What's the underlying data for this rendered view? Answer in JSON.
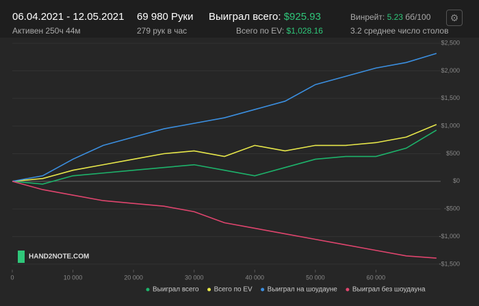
{
  "header": {
    "date_range": "06.04.2021 - 12.05.2021",
    "active": "Активен 250ч 44м",
    "hands": "69 980 Руки",
    "hands_per_hour": "279 рук в час",
    "won_label": "Выиграл всего:",
    "won_value": "$925.93",
    "ev_label": "Всего по EV:",
    "ev_value": "$1,028.16",
    "winrate_label": "Винрейт:",
    "winrate_value": "5.23",
    "winrate_unit": "бб/100",
    "tables": "3.2 среднее число столов"
  },
  "logo": "HAND2NOTE.COM",
  "chart_data": {
    "type": "line",
    "x": [
      0,
      5000,
      10000,
      15000,
      20000,
      25000,
      30000,
      35000,
      40000,
      45000,
      50000,
      55000,
      60000,
      65000,
      69980
    ],
    "series": [
      {
        "name": "Выиграл всего",
        "color": "#1db36b",
        "values": [
          0,
          -50,
          100,
          150,
          200,
          250,
          300,
          200,
          100,
          250,
          400,
          450,
          450,
          600,
          926
        ]
      },
      {
        "name": "Всего по EV",
        "color": "#e8e84a",
        "values": [
          0,
          50,
          200,
          300,
          400,
          500,
          550,
          450,
          650,
          550,
          650,
          650,
          700,
          800,
          1028
        ]
      },
      {
        "name": "Выиграл на шоудауне",
        "color": "#3b8fe0",
        "values": [
          0,
          100,
          400,
          650,
          800,
          950,
          1050,
          1150,
          1300,
          1450,
          1750,
          1900,
          2050,
          2150,
          2315
        ]
      },
      {
        "name": "Выиграл без шоудауна",
        "color": "#e0456e",
        "values": [
          0,
          -150,
          -250,
          -350,
          -400,
          -450,
          -550,
          -750,
          -850,
          -950,
          -1050,
          -1150,
          -1250,
          -1350,
          -1390
        ]
      }
    ],
    "xlim": [
      0,
      70000
    ],
    "ylim": [
      -1600,
      2600
    ],
    "xticks": [
      0,
      {
        "value": 10000,
        "label": "10 000"
      },
      {
        "value": 20000,
        "label": "20 000"
      },
      {
        "value": 30000,
        "label": "30 000"
      },
      {
        "value": 40000,
        "label": "40 000"
      },
      {
        "value": 50000,
        "label": "50 000"
      },
      {
        "value": 60000,
        "label": "60 000"
      }
    ],
    "yticks": [
      {
        "value": 2500,
        "label": "$2,500"
      },
      {
        "value": 2000,
        "label": "$2,000"
      },
      {
        "value": 1500,
        "label": "$1,500"
      },
      {
        "value": 1000,
        "label": "$1,000"
      },
      {
        "value": 500,
        "label": "$500"
      },
      {
        "value": 0,
        "label": "$0"
      },
      {
        "value": -500,
        "label": "-$500"
      },
      {
        "value": -1000,
        "label": "-$1,000"
      },
      {
        "value": -1500,
        "label": "-$1,500"
      }
    ],
    "grid": true
  }
}
